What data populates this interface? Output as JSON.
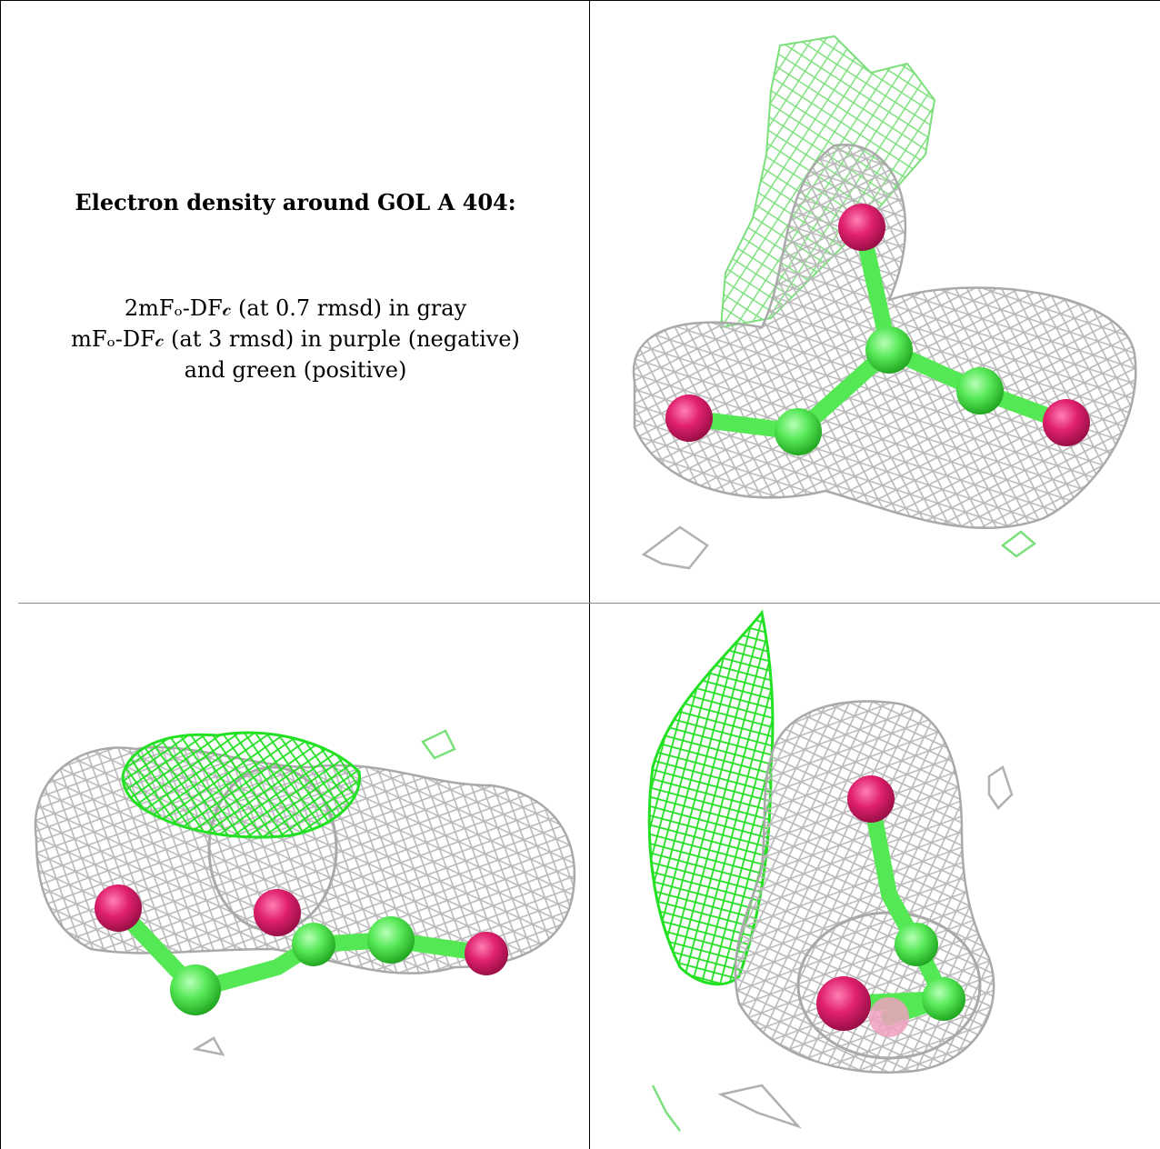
{
  "caption": {
    "title": "Electron density around GOL A 404:",
    "lines": [
      "2mFₒ-DF𝒸 (at 0.7 rmsd) in gray",
      "mFₒ-DF𝒸 (at 3 rmsd) in purple (negative)",
      "and green (positive)"
    ]
  },
  "map_colors": {
    "twofofc_mesh": "#b4b4b4",
    "fofc_positive_mesh": "#22e022",
    "oxygen": "#e0206e",
    "carbon": "#55e855"
  },
  "panels": [
    {
      "view": "view-1"
    },
    {
      "view": "view-2"
    },
    {
      "view": "view-3"
    }
  ]
}
